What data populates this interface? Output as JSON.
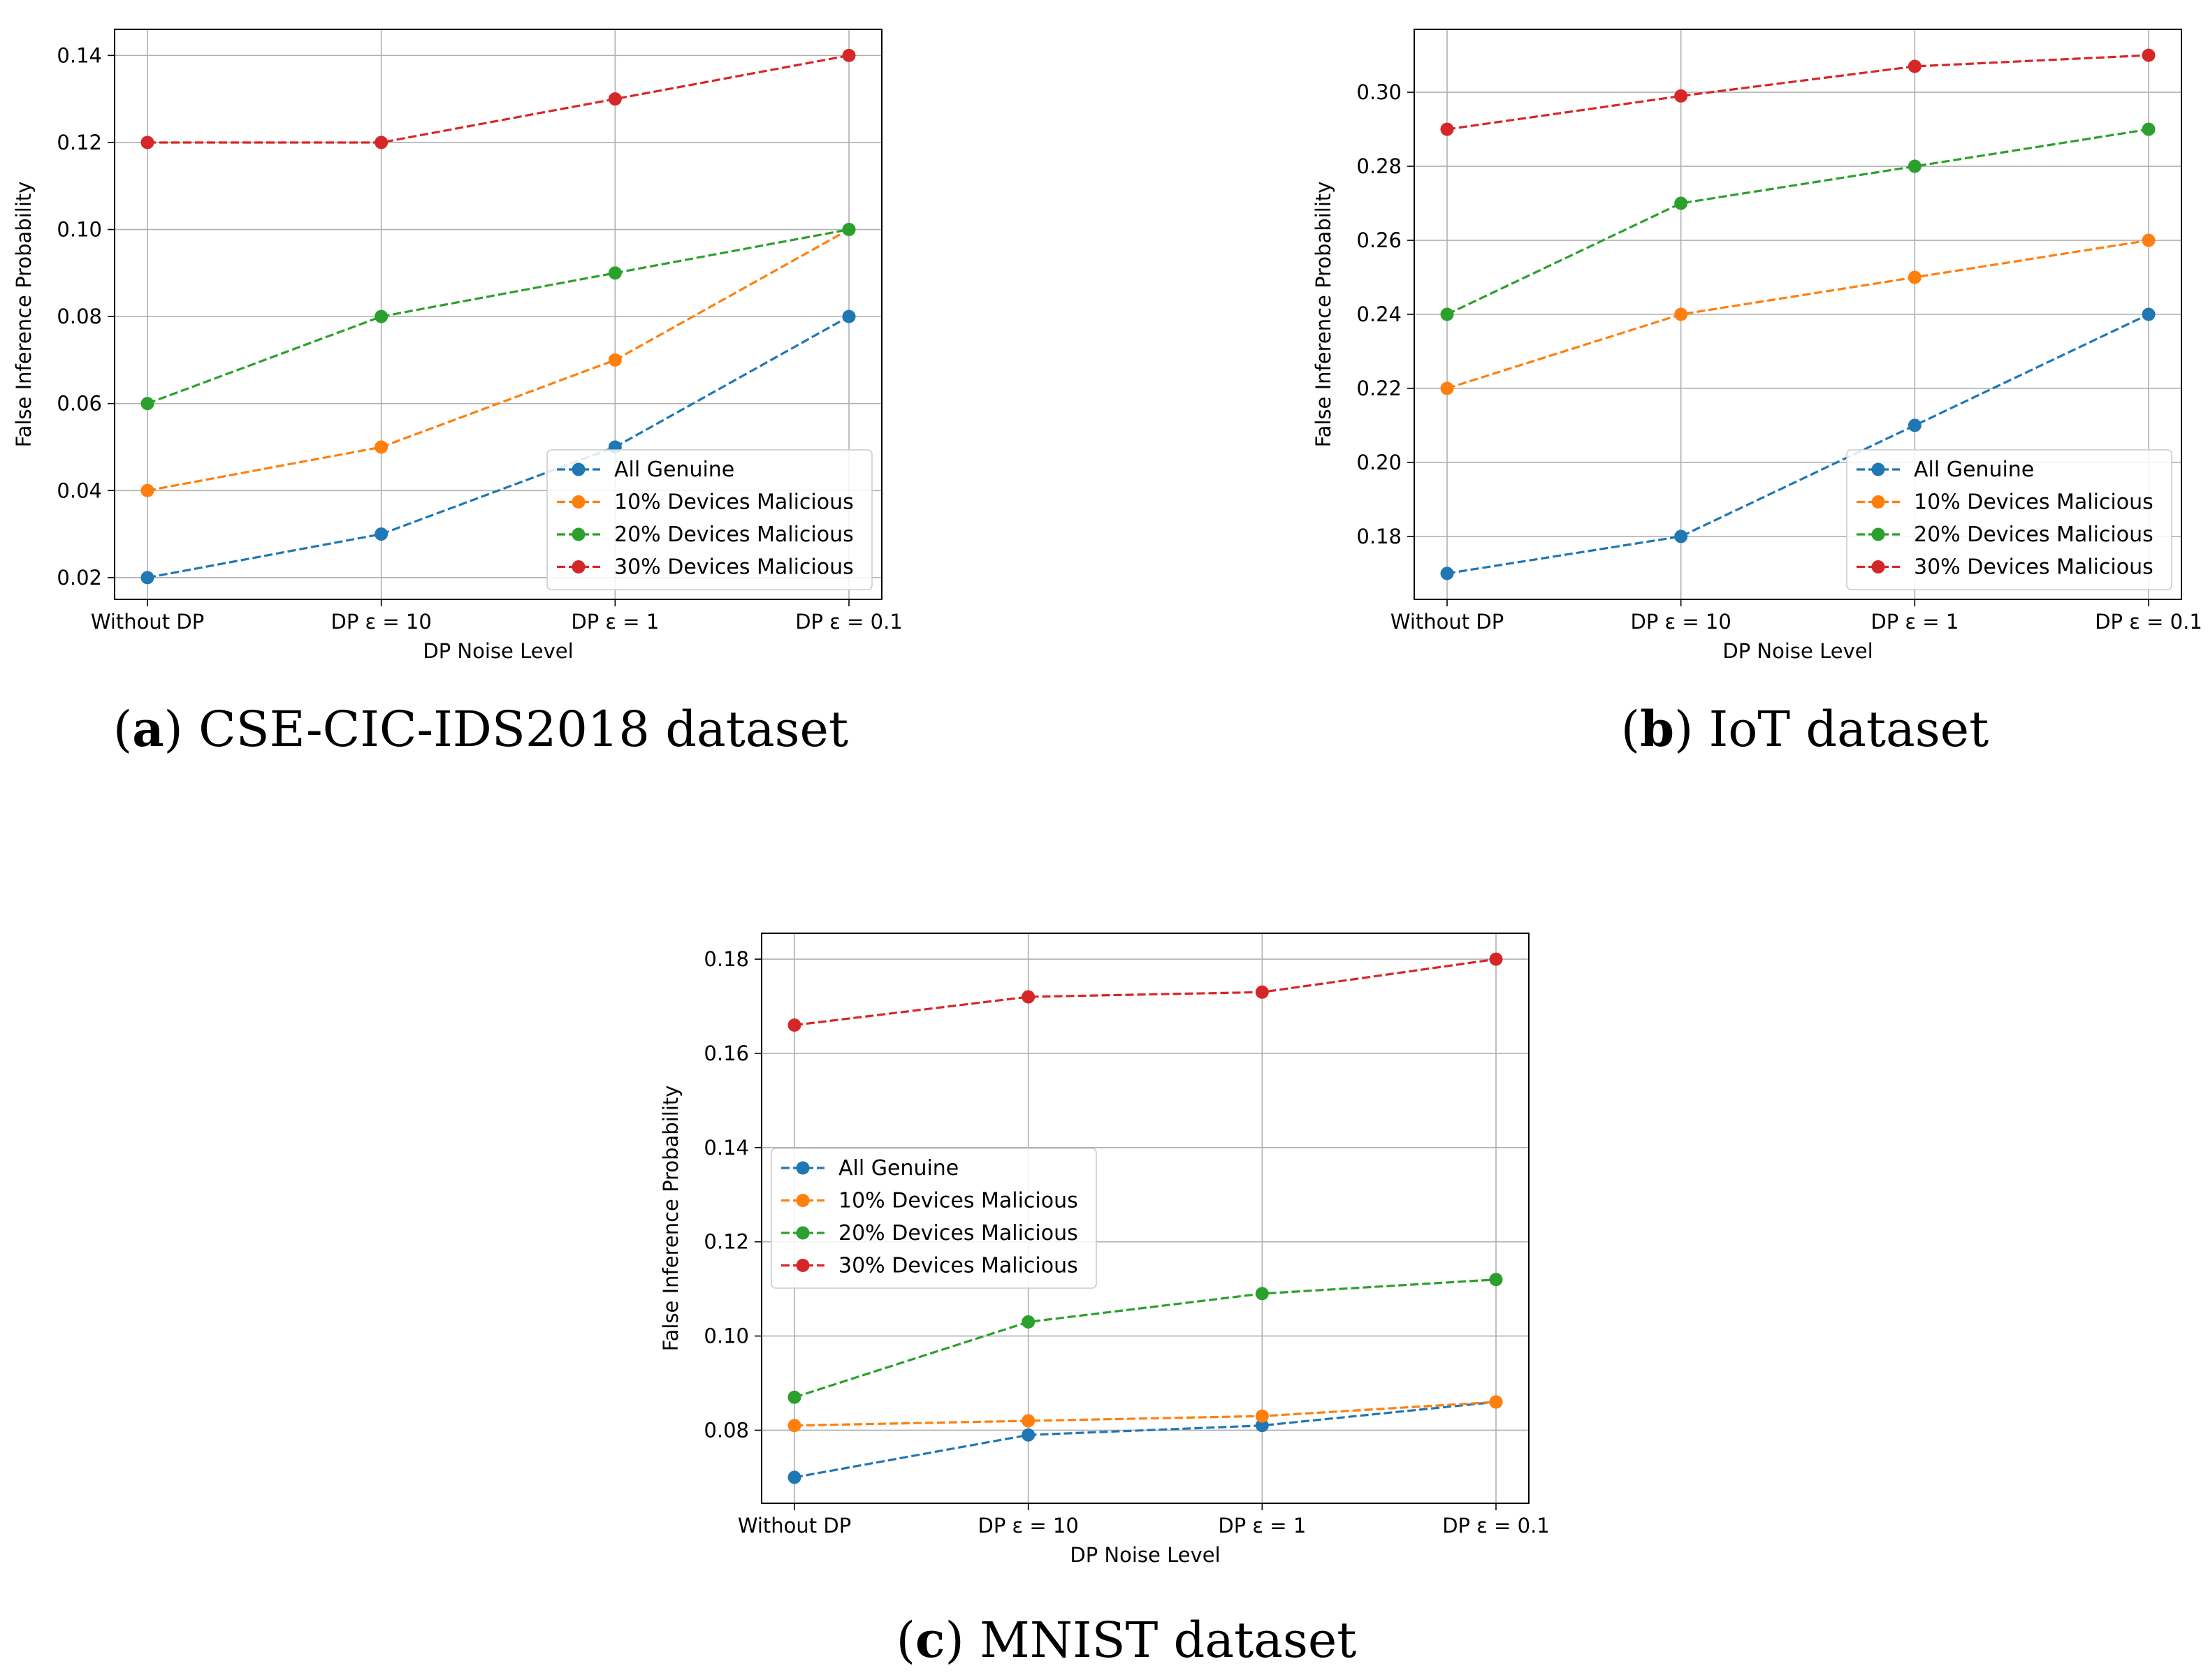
{
  "chart_data": [
    {
      "type": "line",
      "caption_letter": "a",
      "caption_text": "CSE-CIC-IDS2018 dataset",
      "xlabel": "DP Noise Level",
      "ylabel": "False Inference Probability",
      "categories": [
        "Without DP",
        "DP ε = 10",
        "DP ε = 1",
        "DP ε = 0.1"
      ],
      "ylim": [
        0.015,
        0.146
      ],
      "yticks": [
        0.02,
        0.04,
        0.06,
        0.08,
        0.1,
        0.12,
        0.14
      ],
      "ytick_labels": [
        "0.02",
        "0.04",
        "0.06",
        "0.08",
        "0.10",
        "0.12",
        "0.14"
      ],
      "grid": true,
      "legend_position": "lower-right",
      "series": [
        {
          "name": "All Genuine",
          "color": "#1f77b4",
          "values": [
            0.02,
            0.03,
            0.05,
            0.08
          ]
        },
        {
          "name": "10% Devices Malicious",
          "color": "#ff7f0e",
          "values": [
            0.04,
            0.05,
            0.07,
            0.1
          ]
        },
        {
          "name": "20% Devices Malicious",
          "color": "#2ca02c",
          "values": [
            0.06,
            0.08,
            0.09,
            0.1
          ]
        },
        {
          "name": "30% Devices Malicious",
          "color": "#d62728",
          "values": [
            0.12,
            0.12,
            0.13,
            0.14
          ]
        }
      ]
    },
    {
      "type": "line",
      "caption_letter": "b",
      "caption_text": "IoT dataset",
      "xlabel": "DP Noise Level",
      "ylabel": "False Inference Probability",
      "categories": [
        "Without DP",
        "DP ε = 10",
        "DP ε = 1",
        "DP ε = 0.1"
      ],
      "ylim": [
        0.163,
        0.317
      ],
      "yticks": [
        0.18,
        0.2,
        0.22,
        0.24,
        0.26,
        0.28,
        0.3
      ],
      "ytick_labels": [
        "0.18",
        "0.20",
        "0.22",
        "0.24",
        "0.26",
        "0.28",
        "0.30"
      ],
      "grid": true,
      "legend_position": "lower-right",
      "series": [
        {
          "name": "All Genuine",
          "color": "#1f77b4",
          "values": [
            0.17,
            0.18,
            0.21,
            0.24
          ]
        },
        {
          "name": "10% Devices Malicious",
          "color": "#ff7f0e",
          "values": [
            0.22,
            0.24,
            0.25,
            0.26
          ]
        },
        {
          "name": "20% Devices Malicious",
          "color": "#2ca02c",
          "values": [
            0.24,
            0.27,
            0.28,
            0.29
          ]
        },
        {
          "name": "30% Devices Malicious",
          "color": "#d62728",
          "values": [
            0.29,
            0.299,
            0.307,
            0.31
          ]
        }
      ]
    },
    {
      "type": "line",
      "caption_letter": "c",
      "caption_text": "MNIST dataset",
      "xlabel": "DP Noise Level",
      "ylabel": "False Inference Probability",
      "categories": [
        "Without DP",
        "DP ε = 10",
        "DP ε = 1",
        "DP ε = 0.1"
      ],
      "ylim": [
        0.0645,
        0.1855
      ],
      "yticks": [
        0.08,
        0.1,
        0.12,
        0.14,
        0.16,
        0.18
      ],
      "ytick_labels": [
        "0.08",
        "0.10",
        "0.12",
        "0.14",
        "0.16",
        "0.18"
      ],
      "grid": true,
      "legend_position": "center-left",
      "series": [
        {
          "name": "All Genuine",
          "color": "#1f77b4",
          "values": [
            0.07,
            0.079,
            0.081,
            0.086
          ]
        },
        {
          "name": "10% Devices Malicious",
          "color": "#ff7f0e",
          "values": [
            0.081,
            0.082,
            0.083,
            0.086
          ]
        },
        {
          "name": "20% Devices Malicious",
          "color": "#2ca02c",
          "values": [
            0.087,
            0.103,
            0.109,
            0.112
          ]
        },
        {
          "name": "30% Devices Malicious",
          "color": "#d62728",
          "values": [
            0.166,
            0.172,
            0.173,
            0.18
          ]
        }
      ]
    }
  ]
}
